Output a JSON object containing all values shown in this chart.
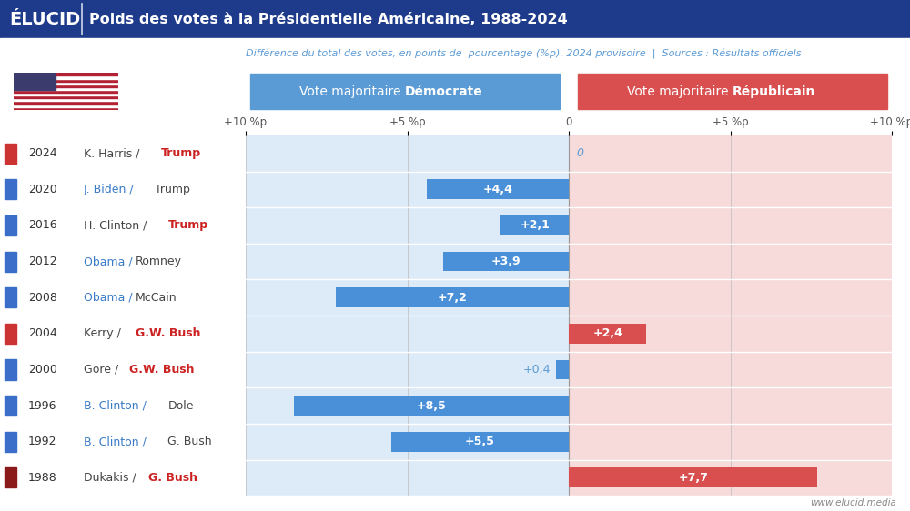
{
  "title": "Poids des votes à la Présidentielle Américaine, 1988-2024",
  "subtitle": "Différence du total des votes, en points de  pourcentage (%p). 2024 provisoire  |  Sources : Résultats officiels",
  "brand": "ÉLUCID",
  "website": "www.elucid.media",
  "years": [
    2024,
    2020,
    2016,
    2012,
    2008,
    2004,
    2000,
    1996,
    1992,
    1988
  ],
  "values": [
    0.0,
    4.4,
    2.1,
    3.9,
    7.2,
    -2.4,
    0.4,
    8.5,
    5.5,
    -7.7
  ],
  "labels_value": [
    "0",
    "+4,4",
    "+2,1",
    "+3,9",
    "+7,2",
    "+2,4",
    "+0,4",
    "+8,5",
    "+5,5",
    "+7,7"
  ],
  "candidates": [
    {
      "left": "K. Harris",
      "right": "Trump",
      "left_color": "#444444",
      "right_color": "#cc2222",
      "left_bold": false,
      "right_bold": true
    },
    {
      "left": "J. Biden",
      "right": "Trump",
      "left_color": "#3a7bc8",
      "right_color": "#444444",
      "left_bold": false,
      "right_bold": false
    },
    {
      "left": "H. Clinton",
      "right": "Trump",
      "left_color": "#444444",
      "right_color": "#cc2222",
      "left_bold": false,
      "right_bold": true
    },
    {
      "left": "Obama",
      "right": "Romney",
      "left_color": "#3a7bc8",
      "right_color": "#444444",
      "left_bold": false,
      "right_bold": false
    },
    {
      "left": "Obama",
      "right": "McCain",
      "left_color": "#3a7bc8",
      "right_color": "#444444",
      "left_bold": false,
      "right_bold": false
    },
    {
      "left": "Kerry",
      "right": "G.W. Bush",
      "left_color": "#444444",
      "right_color": "#cc2222",
      "left_bold": false,
      "right_bold": true
    },
    {
      "left": "Gore",
      "right": "G.W. Bush",
      "left_color": "#444444",
      "right_color": "#cc2222",
      "left_bold": false,
      "right_bold": true
    },
    {
      "left": "B. Clinton",
      "right": "Dole",
      "left_color": "#3a7bc8",
      "right_color": "#444444",
      "left_bold": false,
      "right_bold": false
    },
    {
      "left": "B. Clinton",
      "right": "G. Bush",
      "left_color": "#3a7bc8",
      "right_color": "#444444",
      "left_bold": false,
      "right_bold": false
    },
    {
      "left": "Dukakis",
      "right": "G. Bush",
      "left_color": "#444444",
      "right_color": "#cc2222",
      "left_bold": false,
      "right_bold": true
    }
  ],
  "year_square_colors": [
    "#cc3333",
    "#3a6ec8",
    "#3a6ec8",
    "#3a6ec8",
    "#3a6ec8",
    "#cc3333",
    "#3a6ec8",
    "#3a6ec8",
    "#3a6ec8",
    "#8b1a1a"
  ],
  "bar_blue": "#4a90d9",
  "bar_red": "#d94f4f",
  "bg_blue_light": "#ddeaf7",
  "bg_red_light": "#f7dada",
  "header_blue": "#1e3a8a",
  "label_blue": "#5b9bd5",
  "dem_header_bg": "#5b9bd5",
  "rep_header_bg": "#d94f4f",
  "xlim": [
    -10,
    10
  ],
  "xticks": [
    -10,
    -5,
    0,
    5,
    10
  ],
  "xtick_labels": [
    "+10 %p",
    "+5 %p",
    "0",
    "+5 %p",
    "+10 %p"
  ]
}
